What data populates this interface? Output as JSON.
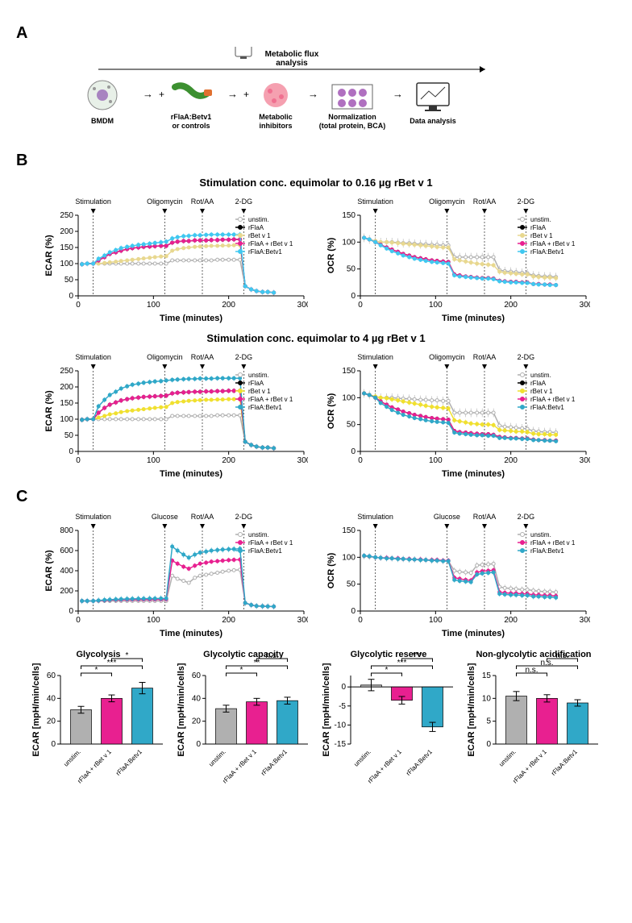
{
  "panelA": {
    "label": "A",
    "topLabel": "Metabolic flux\nanalysis",
    "steps": [
      {
        "label": "BMDM"
      },
      {
        "label": "rFlaA:Betv1\nor controls"
      },
      {
        "label": "Metabolic\ninhibitors"
      },
      {
        "label": "Normalization\n(total protein, BCA)"
      },
      {
        "label": "Data analysis"
      }
    ]
  },
  "series": {
    "unstim": {
      "label": "unstim.",
      "color": "#b0b0b0"
    },
    "rFlaA": {
      "label": "rFlaA",
      "color": "#000000"
    },
    "rBetv1_low": {
      "label": "rBet v 1",
      "color": "#e8d890"
    },
    "rBetv1_high": {
      "label": "rBet v 1",
      "color": "#f0e030"
    },
    "mix": {
      "label": "rFlaA + rBet v 1",
      "color": "#e82090"
    },
    "fusion_low": {
      "label": "rFlaA:Betv1",
      "color": "#40c8f0"
    },
    "fusion_high": {
      "label": "rFlaA:Betv1",
      "color": "#30a8c8"
    }
  },
  "panelB": {
    "label": "B",
    "title_low": "Stimulation conc. equimolar to 0.16 µg rBet v 1",
    "title_high": "Stimulation conc. equimolar to 4 µg rBet v 1",
    "injections": [
      {
        "label": "Stimulation",
        "x": 20
      },
      {
        "label": "Oligomycin",
        "x": 115
      },
      {
        "label": "Rot/AA",
        "x": 165
      },
      {
        "label": "2-DG",
        "x": 220
      }
    ],
    "xlabel": "Time (minutes)",
    "ecar_label": "ECAR (%)",
    "ocr_label": "OCR (%)",
    "xlim": [
      0,
      300
    ],
    "xticks": [
      0,
      100,
      200,
      300
    ],
    "ecar_ylim": [
      0,
      250
    ],
    "ecar_yticks": [
      0,
      50,
      100,
      150,
      200,
      250
    ],
    "ocr_ylim": [
      0,
      150
    ],
    "ocr_yticks": [
      0,
      50,
      100,
      150
    ],
    "timePoints": [
      5,
      12,
      20,
      27,
      35,
      42,
      50,
      57,
      65,
      72,
      80,
      87,
      95,
      102,
      110,
      117,
      125,
      132,
      140,
      147,
      155,
      162,
      170,
      177,
      185,
      192,
      200,
      207,
      215,
      222,
      230,
      237,
      245,
      252,
      260
    ],
    "ecar_low": {
      "unstim": [
        98,
        100,
        100,
        100,
        100,
        100,
        100,
        100,
        100,
        100,
        100,
        100,
        100,
        100,
        100,
        100,
        110,
        110,
        110,
        110,
        110,
        110,
        110,
        110,
        112,
        112,
        112,
        112,
        112,
        30,
        20,
        15,
        12,
        12,
        10
      ],
      "rFlaA": [
        98,
        100,
        100,
        110,
        120,
        130,
        135,
        140,
        145,
        148,
        150,
        152,
        153,
        154,
        155,
        155,
        165,
        168,
        170,
        170,
        172,
        172,
        172,
        173,
        173,
        174,
        174,
        175,
        175,
        30,
        20,
        15,
        12,
        12,
        10
      ],
      "rBetv1": [
        98,
        100,
        100,
        100,
        102,
        104,
        106,
        108,
        110,
        112,
        114,
        116,
        118,
        120,
        122,
        123,
        140,
        145,
        148,
        150,
        152,
        153,
        154,
        155,
        155,
        156,
        156,
        157,
        157,
        30,
        20,
        15,
        12,
        12,
        10
      ],
      "mix": [
        98,
        100,
        100,
        110,
        120,
        130,
        135,
        140,
        145,
        148,
        150,
        152,
        153,
        154,
        155,
        155,
        165,
        168,
        170,
        170,
        172,
        172,
        172,
        173,
        173,
        174,
        174,
        175,
        175,
        30,
        20,
        15,
        12,
        12,
        10
      ],
      "fusion": [
        98,
        100,
        100,
        115,
        125,
        135,
        142,
        148,
        152,
        155,
        158,
        160,
        162,
        164,
        166,
        168,
        178,
        182,
        185,
        186,
        188,
        188,
        189,
        190,
        190,
        190,
        190,
        190,
        190,
        30,
        20,
        15,
        12,
        12,
        10
      ]
    },
    "ocr_low": {
      "unstim": [
        108,
        105,
        102,
        100,
        100,
        100,
        99,
        98,
        98,
        97,
        96,
        96,
        95,
        95,
        94,
        94,
        72,
        72,
        72,
        72,
        72,
        72,
        72,
        72,
        48,
        46,
        45,
        44,
        43,
        42,
        38,
        37,
        36,
        36,
        35
      ],
      "rFlaA": [
        108,
        105,
        100,
        95,
        90,
        86,
        82,
        78,
        75,
        72,
        70,
        68,
        66,
        65,
        64,
        63,
        40,
        38,
        36,
        35,
        34,
        33,
        33,
        32,
        28,
        27,
        26,
        26,
        25,
        25,
        22,
        22,
        21,
        21,
        20
      ],
      "rBetv1": [
        108,
        105,
        102,
        100,
        100,
        99,
        98,
        97,
        96,
        95,
        94,
        93,
        92,
        91,
        90,
        90,
        68,
        66,
        64,
        62,
        60,
        59,
        58,
        57,
        45,
        43,
        42,
        41,
        40,
        40,
        36,
        35,
        34,
        34,
        33
      ],
      "mix": [
        108,
        105,
        100,
        95,
        90,
        86,
        82,
        78,
        75,
        72,
        70,
        68,
        66,
        65,
        64,
        63,
        40,
        38,
        36,
        35,
        34,
        33,
        33,
        32,
        28,
        27,
        26,
        26,
        25,
        25,
        22,
        22,
        21,
        21,
        20
      ],
      "fusion": [
        108,
        105,
        100,
        94,
        88,
        83,
        79,
        75,
        72,
        69,
        67,
        65,
        63,
        62,
        61,
        60,
        38,
        36,
        35,
        34,
        33,
        32,
        32,
        31,
        27,
        26,
        25,
        25,
        24,
        24,
        22,
        21,
        21,
        20,
        20
      ]
    },
    "ecar_high": {
      "unstim": [
        98,
        100,
        100,
        100,
        100,
        100,
        100,
        100,
        100,
        100,
        100,
        100,
        100,
        100,
        100,
        100,
        110,
        110,
        110,
        110,
        110,
        110,
        110,
        110,
        112,
        112,
        112,
        112,
        112,
        30,
        20,
        15,
        12,
        12,
        10
      ],
      "rFlaA": [
        98,
        100,
        100,
        120,
        135,
        145,
        152,
        158,
        162,
        165,
        167,
        169,
        170,
        171,
        172,
        173,
        180,
        182,
        183,
        184,
        185,
        185,
        186,
        186,
        187,
        187,
        188,
        188,
        188,
        30,
        20,
        15,
        12,
        12,
        10
      ],
      "rBetv1": [
        98,
        100,
        100,
        105,
        110,
        115,
        118,
        122,
        125,
        127,
        129,
        131,
        133,
        135,
        137,
        138,
        150,
        153,
        155,
        157,
        158,
        159,
        160,
        160,
        161,
        161,
        162,
        162,
        162,
        30,
        20,
        15,
        12,
        12,
        10
      ],
      "mix": [
        98,
        100,
        100,
        120,
        135,
        145,
        152,
        158,
        162,
        165,
        167,
        169,
        170,
        171,
        172,
        173,
        180,
        182,
        183,
        184,
        185,
        185,
        186,
        186,
        187,
        187,
        188,
        188,
        188,
        30,
        20,
        15,
        12,
        12,
        10
      ],
      "fusion": [
        98,
        100,
        100,
        140,
        160,
        175,
        185,
        195,
        202,
        207,
        210,
        213,
        215,
        217,
        218,
        220,
        222,
        223,
        224,
        225,
        225,
        226,
        226,
        226,
        227,
        227,
        227,
        227,
        227,
        30,
        20,
        15,
        12,
        12,
        10
      ]
    },
    "ocr_high": {
      "unstim": [
        108,
        105,
        102,
        100,
        100,
        100,
        99,
        98,
        98,
        97,
        96,
        96,
        95,
        95,
        94,
        94,
        72,
        72,
        72,
        72,
        72,
        72,
        72,
        72,
        48,
        46,
        45,
        44,
        43,
        42,
        38,
        37,
        36,
        36,
        35
      ],
      "rFlaA": [
        108,
        105,
        100,
        93,
        87,
        82,
        78,
        74,
        71,
        68,
        66,
        64,
        62,
        61,
        60,
        59,
        38,
        36,
        35,
        34,
        33,
        32,
        32,
        31,
        27,
        26,
        25,
        25,
        24,
        24,
        22,
        21,
        21,
        20,
        20
      ],
      "rBetv1": [
        108,
        105,
        102,
        100,
        99,
        97,
        95,
        93,
        91,
        89,
        87,
        85,
        83,
        82,
        81,
        80,
        58,
        56,
        54,
        52,
        51,
        50,
        50,
        49,
        40,
        39,
        38,
        37,
        37,
        36,
        33,
        32,
        32,
        31,
        31
      ],
      "mix": [
        108,
        105,
        100,
        93,
        87,
        82,
        78,
        74,
        71,
        68,
        66,
        64,
        62,
        61,
        60,
        59,
        38,
        36,
        35,
        34,
        33,
        32,
        32,
        31,
        27,
        26,
        25,
        25,
        24,
        24,
        22,
        21,
        21,
        20,
        20
      ],
      "fusion": [
        108,
        105,
        100,
        90,
        83,
        77,
        72,
        68,
        65,
        62,
        60,
        58,
        56,
        55,
        54,
        53,
        35,
        33,
        32,
        31,
        30,
        30,
        29,
        29,
        25,
        25,
        24,
        24,
        23,
        23,
        21,
        21,
        20,
        20,
        19
      ]
    }
  },
  "panelC": {
    "label": "C",
    "injections": [
      {
        "label": "Stimulation",
        "x": 20
      },
      {
        "label": "Glucose",
        "x": 115
      },
      {
        "label": "Rot/AA",
        "x": 165
      },
      {
        "label": "2-DG",
        "x": 220
      }
    ],
    "xlabel": "Time (minutes)",
    "ecar_label": "ECAR (%)",
    "ocr_label": "OCR (%)",
    "xlim": [
      0,
      300
    ],
    "xticks": [
      0,
      100,
      200,
      300
    ],
    "ecar_ylim": [
      0,
      800
    ],
    "ecar_yticks": [
      0,
      200,
      400,
      600,
      800
    ],
    "ocr_ylim": [
      0,
      150
    ],
    "ocr_yticks": [
      0,
      50,
      100,
      150
    ],
    "timePoints": [
      5,
      12,
      20,
      27,
      35,
      42,
      50,
      57,
      65,
      72,
      80,
      87,
      95,
      102,
      110,
      117,
      125,
      132,
      140,
      147,
      155,
      162,
      170,
      177,
      185,
      192,
      200,
      207,
      215,
      222,
      230,
      237,
      245,
      252,
      260
    ],
    "ecar_C": {
      "unstim": [
        100,
        100,
        100,
        100,
        100,
        100,
        100,
        100,
        100,
        100,
        100,
        100,
        100,
        100,
        100,
        100,
        350,
        320,
        300,
        280,
        330,
        350,
        360,
        370,
        380,
        390,
        400,
        405,
        410,
        80,
        60,
        50,
        48,
        46,
        45
      ],
      "mix": [
        100,
        100,
        100,
        103,
        106,
        109,
        111,
        112,
        113,
        114,
        114,
        115,
        115,
        115,
        116,
        116,
        500,
        470,
        440,
        420,
        450,
        470,
        480,
        490,
        495,
        500,
        505,
        508,
        510,
        80,
        60,
        50,
        48,
        46,
        45
      ],
      "fusion": [
        100,
        100,
        100,
        105,
        110,
        113,
        116,
        118,
        120,
        121,
        122,
        123,
        124,
        124,
        125,
        125,
        640,
        600,
        560,
        530,
        560,
        580,
        590,
        600,
        605,
        610,
        613,
        615,
        618,
        80,
        60,
        50,
        48,
        46,
        45
      ]
    },
    "ocr_C": {
      "unstim": [
        102,
        101,
        100,
        99,
        98,
        98,
        97,
        97,
        96,
        96,
        95,
        95,
        94,
        94,
        93,
        93,
        75,
        73,
        72,
        71,
        85,
        86,
        87,
        88,
        45,
        43,
        42,
        41,
        40,
        40,
        38,
        37,
        36,
        36,
        35
      ],
      "mix": [
        103,
        102,
        100,
        99,
        99,
        98,
        98,
        97,
        97,
        96,
        96,
        95,
        95,
        95,
        94,
        94,
        62,
        60,
        58,
        57,
        72,
        74,
        75,
        76,
        35,
        34,
        33,
        33,
        32,
        32,
        30,
        30,
        29,
        29,
        28
      ],
      "fusion": [
        103,
        102,
        100,
        99,
        98,
        98,
        97,
        97,
        96,
        96,
        95,
        95,
        94,
        94,
        93,
        93,
        58,
        56,
        55,
        54,
        68,
        70,
        71,
        72,
        32,
        31,
        30,
        30,
        29,
        29,
        27,
        27,
        26,
        26,
        25
      ]
    },
    "bars": {
      "unstim_color": "#b0b0b0",
      "mix_color": "#e82090",
      "fusion_color": "#30a8c8",
      "xtick_labels": [
        "unstim.",
        "rFlaA + rBet v 1",
        "rFlaA:Betv1"
      ],
      "glycolysis": {
        "title": "Glycolysis",
        "ylabel": "ECAR [mpH/min/cells]",
        "ylim": [
          0,
          60
        ],
        "yticks": [
          0,
          20,
          40,
          60
        ],
        "values": [
          30,
          40,
          49
        ],
        "err": [
          3,
          3,
          5
        ],
        "sig": [
          [
            "unstim",
            "mix",
            "*"
          ],
          [
            "unstim",
            "fusion",
            "***"
          ],
          [
            "mix",
            "fusion",
            "*"
          ]
        ]
      },
      "capacity": {
        "title": "Glycolytic capacity",
        "ylabel": "ECAR [mpH/min/cells]",
        "ylim": [
          0,
          60
        ],
        "yticks": [
          0,
          20,
          40,
          60
        ],
        "values": [
          31,
          37,
          38
        ],
        "err": [
          3,
          3,
          3
        ],
        "sig": [
          [
            "unstim",
            "mix",
            "*"
          ],
          [
            "unstim",
            "fusion",
            "**"
          ],
          [
            "mix",
            "fusion",
            "n.s."
          ]
        ]
      },
      "reserve": {
        "title": "Glycolytic reserve",
        "ylabel": "ECAR [mpH/min/cells]",
        "ylim": [
          -15,
          3
        ],
        "yticks": [
          -15,
          -10,
          -5,
          0
        ],
        "values": [
          0.5,
          -3.5,
          -10.5
        ],
        "err": [
          1.5,
          1.0,
          1.2
        ],
        "sig": [
          [
            "unstim",
            "mix",
            "*"
          ],
          [
            "unstim",
            "fusion",
            "***"
          ],
          [
            "mix",
            "fusion",
            "***"
          ]
        ]
      },
      "nonglyc": {
        "title": "Non-glycolytic acidification",
        "ylabel": "ECAR [mpH/min/cells]",
        "ylim": [
          0,
          15
        ],
        "yticks": [
          0,
          5,
          10,
          15
        ],
        "values": [
          10.5,
          10,
          9
        ],
        "err": [
          1,
          0.8,
          0.7
        ],
        "sig": [
          [
            "unstim",
            "mix",
            "n.s."
          ],
          [
            "unstim",
            "fusion",
            "n.s."
          ],
          [
            "mix",
            "fusion",
            "n.s."
          ]
        ]
      }
    }
  }
}
